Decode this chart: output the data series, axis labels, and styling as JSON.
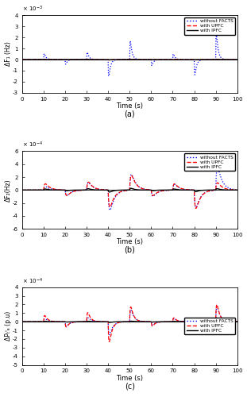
{
  "title_a": "(a)",
  "title_b": "(b)",
  "title_c": "(c)",
  "xlabel": "Time (s)",
  "ylabel_a": "ΔF₁ (Hz)",
  "ylabel_b": "ΔF₂(Hz)",
  "ylabel_c": "ΔPₜᴵₑ (p.u)",
  "xlim": [
    0,
    100
  ],
  "ylim_a": [
    -0.003,
    0.004
  ],
  "ylim_b": [
    -0.0006,
    0.0006
  ],
  "ylim_c": [
    -0.0005,
    0.0004
  ],
  "yticks_a": [
    -3,
    -2,
    -1,
    0,
    1,
    2,
    3,
    4
  ],
  "yticks_b": [
    -6,
    -4,
    -2,
    0,
    2,
    4,
    6
  ],
  "yticks_c": [
    -5,
    -4,
    -3,
    -2,
    -1,
    0,
    1,
    2,
    3,
    4
  ],
  "legend_labels": [
    "without FACTS",
    "with UPFC",
    "with IPFC"
  ],
  "background": "#ffffff"
}
